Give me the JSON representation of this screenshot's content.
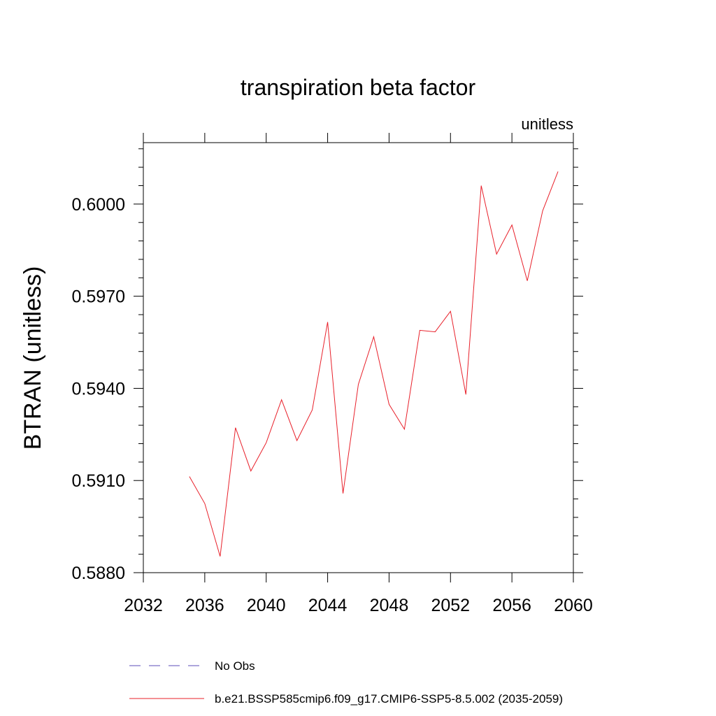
{
  "chart_data": {
    "type": "line",
    "title": "transpiration beta factor",
    "units_label": "unitless",
    "ylabel": "BTRAN  (unitless)",
    "xlabel": "",
    "xlim": [
      2032,
      2060
    ],
    "ylim": [
      0.588,
      0.602
    ],
    "x_ticks": [
      "2032",
      "2036",
      "2040",
      "2044",
      "2048",
      "2052",
      "2056",
      "2060"
    ],
    "y_ticks": [
      "0.5880",
      "0.5910",
      "0.5940",
      "0.5970",
      "0.6000"
    ],
    "grid": false,
    "legend_position": "bottom",
    "series": [
      {
        "name": "No Obs",
        "color": "#5b4db8",
        "dash": "dashed",
        "x": [],
        "y": []
      },
      {
        "name": "b.e21.BSSP585cmip6.f09_g17.CMIP6-SSP5-8.5.002 (2035-2059)",
        "color": "#e8202a",
        "dash": "solid",
        "x": [
          2035,
          2036,
          2037,
          2038,
          2039,
          2040,
          2041,
          2042,
          2043,
          2044,
          2045,
          2046,
          2047,
          2048,
          2049,
          2050,
          2051,
          2052,
          2053,
          2054,
          2055,
          2056,
          2057,
          2058,
          2059
        ],
        "y": [
          0.59113,
          0.59025,
          0.58853,
          0.59272,
          0.59131,
          0.59223,
          0.59363,
          0.5923,
          0.5933,
          0.59616,
          0.59058,
          0.59413,
          0.59568,
          0.59348,
          0.59267,
          0.59589,
          0.59584,
          0.59651,
          0.5938,
          0.6006,
          0.59837,
          0.59932,
          0.5975,
          0.59978,
          0.60106
        ]
      }
    ]
  }
}
